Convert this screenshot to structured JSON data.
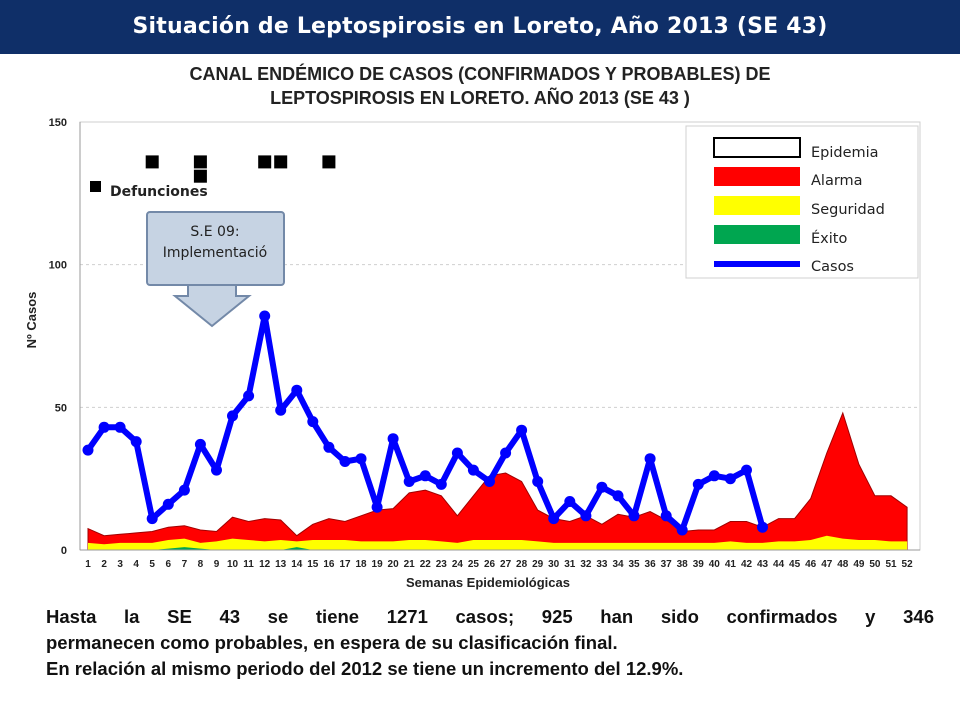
{
  "header": {
    "title": "Situación de Leptospirosis en Loreto, Año 2013 (SE 43)"
  },
  "chart_data": {
    "type": "area",
    "title_lines": [
      "CANAL ENDÉMICO DE CASOS (CONFIRMADOS Y PROBABLES) DE",
      "LEPTOSPIROSIS EN LORETO. AÑO 2013 (SE 43 )"
    ],
    "xlabel": "Semanas Epidemiológicas",
    "ylabel": "Nº Casos",
    "ylim": [
      0,
      150
    ],
    "yticks": [
      0,
      50,
      100,
      150
    ],
    "grid": true,
    "legend_position": "top-right",
    "legend": [
      {
        "name": "Epidemia",
        "color": "#ffffff"
      },
      {
        "name": "Alarma",
        "color": "#ff0000"
      },
      {
        "name": "Seguridad",
        "color": "#ffff00"
      },
      {
        "name": "Éxito",
        "color": "#00a650"
      },
      {
        "name": "Casos",
        "color": "#0000ff"
      }
    ],
    "x": [
      "1",
      "2",
      "3",
      "4",
      "5",
      "6",
      "7",
      "8",
      "9",
      "10",
      "11",
      "12",
      "13",
      "14",
      "15",
      "16",
      "17",
      "18",
      "19",
      "20",
      "21",
      "22",
      "23",
      "24",
      "25",
      "26",
      "27",
      "28",
      "29",
      "30",
      "31",
      "32",
      "33",
      "34",
      "35",
      "36",
      "37",
      "38",
      "39",
      "40",
      "41",
      "42",
      "43",
      "44",
      "45",
      "46",
      "47",
      "48",
      "49",
      "50",
      "51",
      "52"
    ],
    "series": [
      {
        "name": "Éxito",
        "color": "#00a650",
        "values": [
          0,
          0,
          0,
          0,
          0,
          0.5,
          1,
          0.5,
          0,
          0,
          0,
          0,
          0,
          1,
          0,
          0,
          0,
          0,
          0,
          0,
          0,
          0,
          0,
          0,
          0,
          0,
          0,
          0,
          0,
          0,
          0,
          0,
          0,
          0,
          0,
          0,
          0,
          0,
          0,
          0,
          0,
          0,
          0,
          0,
          0,
          0,
          0,
          0,
          0,
          0,
          0,
          0
        ]
      },
      {
        "name": "Seguridad",
        "color": "#ffff00",
        "values": [
          2.5,
          2,
          2.5,
          2.5,
          2.5,
          3.5,
          4,
          2.5,
          3,
          4,
          3.5,
          3,
          3.5,
          3,
          3.5,
          3.5,
          3.5,
          3,
          3,
          3,
          3.5,
          3.5,
          3,
          2.5,
          3.5,
          3.5,
          3.5,
          3.5,
          3,
          2.5,
          2.5,
          2.5,
          2.5,
          2.5,
          2.5,
          2.5,
          2.5,
          2.5,
          2.5,
          2.5,
          3,
          2.5,
          2.5,
          3,
          3,
          3.5,
          5,
          4,
          3.5,
          3.5,
          3,
          3
        ]
      },
      {
        "name": "Alarma",
        "color": "#ff0000",
        "values": [
          7.5,
          5,
          5.5,
          6,
          6.5,
          8,
          8.5,
          7,
          6.5,
          11.5,
          10,
          11,
          10.5,
          5,
          9,
          11,
          10,
          12,
          14,
          14.5,
          20,
          21,
          19,
          12,
          19,
          26,
          27,
          24,
          14,
          11,
          10,
          12,
          9,
          12.5,
          11.5,
          13.5,
          10.5,
          6.5,
          7,
          7,
          10,
          10,
          8,
          11,
          11,
          18,
          34,
          48,
          30,
          19,
          19,
          15
        ]
      },
      {
        "name": "Casos",
        "color": "#0000ff",
        "values": [
          35,
          43,
          43,
          38,
          11,
          16,
          21,
          37,
          28,
          47,
          54,
          82,
          49,
          56,
          45,
          36,
          31,
          32,
          15,
          39,
          24,
          26,
          23,
          34,
          28,
          24,
          34,
          42,
          24,
          11,
          17,
          12,
          22,
          19,
          12,
          32,
          12,
          7,
          23,
          26,
          25,
          28,
          8,
          null,
          null,
          null,
          null,
          null,
          null,
          null,
          null,
          null
        ]
      }
    ],
    "defunciones": {
      "label": "Defunciones",
      "points": [
        {
          "x": "5",
          "y": 136
        },
        {
          "x": "8",
          "y": 136
        },
        {
          "x": "8",
          "y": 131
        },
        {
          "x": "12",
          "y": 136
        },
        {
          "x": "13",
          "y": 136
        },
        {
          "x": "16",
          "y": 136
        }
      ]
    },
    "annotation": {
      "lines": [
        "S.E 09:",
        "Implementació"
      ]
    }
  },
  "summary": {
    "line1": "Hasta la SE 43 se tiene 1271 casos; 925 han sido confirmados y 346",
    "line2": "permanecen como probables, en espera de su clasificación final.",
    "line3": "En relación al mismo periodo del 2012 se tiene un incremento del 12.9%."
  }
}
